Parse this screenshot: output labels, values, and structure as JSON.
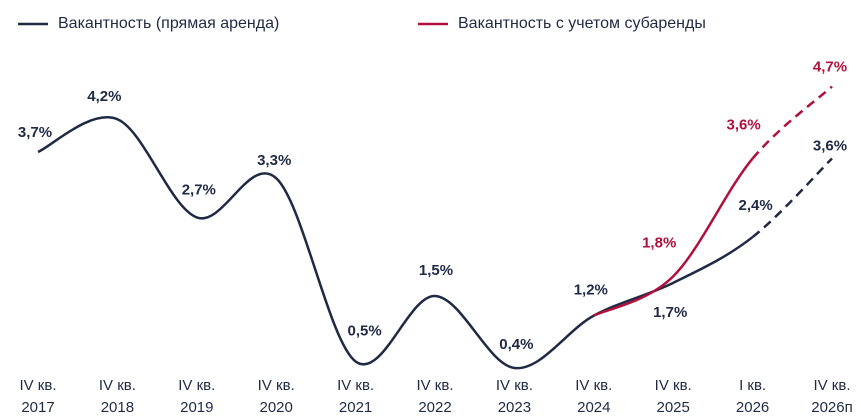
{
  "chart_data": {
    "type": "line",
    "categories": [
      "IV кв. 2017",
      "IV кв. 2018",
      "IV кв. 2019",
      "IV кв. 2020",
      "IV кв. 2021",
      "IV кв. 2022",
      "IV кв. 2023",
      "IV кв. 2024",
      "IV кв. 2025",
      "I кв. 2026",
      "IV кв. 2026п"
    ],
    "series": [
      {
        "name": "Вакантность (прямая аренда)",
        "color": "#1f2a44",
        "dashed_from": 9,
        "values": [
          3.7,
          4.2,
          2.7,
          3.3,
          0.5,
          1.5,
          0.4,
          1.2,
          1.7,
          2.4,
          3.6
        ],
        "value_labels": [
          "3,7%",
          "4,2%",
          "2,7%",
          "3,3%",
          "0,5%",
          "1,5%",
          "0,4%",
          "1,2%",
          "1,7%",
          "2,4%",
          "3,6%"
        ]
      },
      {
        "name": "Вакантность с учетом субаренды",
        "color": "#b0103c",
        "dashed_from": 9,
        "values": [
          null,
          null,
          null,
          null,
          null,
          null,
          null,
          1.2,
          1.8,
          3.6,
          4.7
        ],
        "value_labels": [
          null,
          null,
          null,
          null,
          null,
          null,
          null,
          null,
          "1,8%",
          "3,6%",
          "4,7%"
        ]
      }
    ]
  }
}
